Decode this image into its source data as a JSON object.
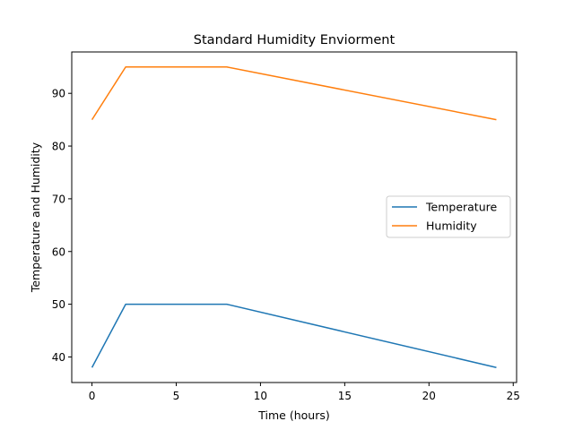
{
  "chart_data": {
    "type": "line",
    "title": "Standard Humidity Enviorment",
    "xlabel": "Time (hours)",
    "ylabel": "Temperature and Humidity",
    "xlim": [
      -1.2,
      25.2
    ],
    "ylim": [
      35.15,
      97.85
    ],
    "xticks": [
      0,
      5,
      10,
      15,
      20,
      25
    ],
    "yticks": [
      40,
      50,
      60,
      70,
      80,
      90
    ],
    "grid": false,
    "legend_position": "center-right",
    "series": [
      {
        "name": "Temperature",
        "color": "#1f77b4",
        "x": [
          0,
          2,
          8,
          24
        ],
        "y": [
          38,
          50,
          50,
          38
        ]
      },
      {
        "name": "Humidity",
        "color": "#ff7f0e",
        "x": [
          0,
          2,
          8,
          24
        ],
        "y": [
          85,
          95,
          95,
          85
        ]
      }
    ]
  }
}
